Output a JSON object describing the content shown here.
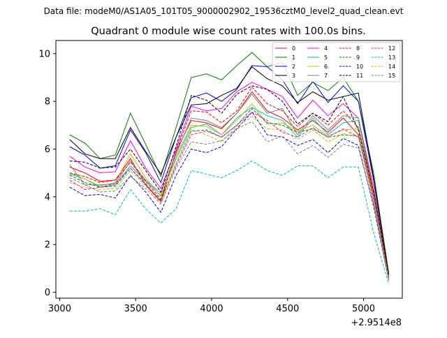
{
  "suptitle": "Data file: modeM0/AS1A05_101T05_9000002902_19536cztM0_level2_quad_clean.evt",
  "chart_data": {
    "type": "line",
    "title": "Quadrant 0 module wise count rates with 100.0s bins.",
    "xlabel": "",
    "ylabel": "",
    "x_offset_label": "+2.9514e8",
    "xlim": [
      2975,
      5255
    ],
    "ylim": [
      -0.25,
      10.55
    ],
    "xticks": [
      3000,
      3500,
      4000,
      4500,
      5000
    ],
    "yticks": [
      0,
      2,
      4,
      6,
      8,
      10
    ],
    "x": [
      3066,
      3166,
      3266,
      3366,
      3466,
      3566,
      3666,
      3766,
      3866,
      3966,
      4066,
      4166,
      4266,
      4366,
      4466,
      4566,
      4666,
      4766,
      4866,
      4966,
      5066,
      5166
    ],
    "legend_position": "upper-right",
    "series": [
      {
        "name": "0",
        "color": "#ff0000",
        "dash": "solid",
        "values": [
          5.25,
          5.0,
          4.65,
          4.7,
          5.6,
          4.5,
          3.8,
          5.9,
          7.2,
          7.1,
          6.85,
          7.5,
          8.4,
          7.6,
          7.3,
          6.8,
          7.2,
          6.7,
          7.3,
          6.6,
          4.0,
          0.7
        ]
      },
      {
        "name": "1",
        "color": "#008000",
        "dash": "solid",
        "values": [
          6.6,
          6.25,
          5.6,
          5.75,
          7.5,
          6.2,
          4.85,
          6.9,
          9.0,
          9.15,
          8.9,
          9.5,
          10.05,
          9.45,
          9.65,
          8.25,
          8.8,
          8.45,
          9.0,
          8.0,
          5.0,
          0.8
        ]
      },
      {
        "name": "2",
        "color": "#0000ff",
        "dash": "solid",
        "values": [
          6.1,
          5.75,
          5.2,
          5.3,
          6.8,
          5.85,
          4.6,
          6.5,
          8.15,
          8.35,
          8.0,
          8.5,
          9.5,
          9.45,
          8.9,
          7.9,
          8.85,
          7.95,
          8.65,
          8.0,
          4.7,
          0.7
        ]
      },
      {
        "name": "3",
        "color": "#000000",
        "dash": "solid",
        "values": [
          6.4,
          5.8,
          5.6,
          5.6,
          6.9,
          5.9,
          4.95,
          6.5,
          7.85,
          7.9,
          8.25,
          8.55,
          9.45,
          8.95,
          8.65,
          7.95,
          8.4,
          8.05,
          8.2,
          8.35,
          4.8,
          0.75
        ]
      },
      {
        "name": "4",
        "color": "#ff00ff",
        "dash": "solid",
        "values": [
          5.7,
          5.25,
          5.0,
          5.05,
          6.35,
          5.2,
          4.35,
          6.0,
          7.8,
          7.6,
          7.7,
          8.4,
          8.8,
          8.5,
          8.2,
          7.3,
          8.05,
          7.4,
          7.9,
          7.3,
          4.4,
          0.7
        ]
      },
      {
        "name": "5",
        "color": "#00bfbf",
        "dash": "solid",
        "values": [
          4.95,
          4.75,
          4.4,
          4.5,
          5.3,
          4.65,
          4.05,
          5.6,
          6.9,
          7.05,
          6.6,
          7.3,
          7.75,
          7.4,
          7.2,
          6.5,
          7.3,
          6.6,
          7.1,
          7.2,
          4.1,
          0.6
        ]
      },
      {
        "name": "6",
        "color": "#bfbf00",
        "dash": "solid",
        "values": [
          5.0,
          4.75,
          4.45,
          4.6,
          5.8,
          4.8,
          4.0,
          5.7,
          7.0,
          6.95,
          6.6,
          7.2,
          7.9,
          7.05,
          7.1,
          6.75,
          7.0,
          6.55,
          6.8,
          6.85,
          4.1,
          0.6
        ]
      },
      {
        "name": "7",
        "color": "#808080",
        "dash": "solid",
        "values": [
          5.35,
          4.5,
          4.5,
          4.55,
          5.5,
          4.7,
          4.15,
          5.8,
          7.3,
          7.2,
          6.9,
          7.5,
          8.3,
          7.5,
          7.7,
          6.6,
          7.4,
          6.8,
          7.4,
          7.3,
          4.2,
          0.65
        ]
      },
      {
        "name": "8",
        "color": "#ff0000",
        "dash": "dashed",
        "values": [
          5.0,
          4.85,
          4.6,
          4.7,
          5.45,
          4.65,
          3.9,
          5.9,
          7.6,
          7.55,
          7.1,
          7.6,
          8.6,
          7.9,
          7.6,
          6.95,
          7.5,
          7.0,
          7.6,
          6.9,
          4.2,
          0.7
        ]
      },
      {
        "name": "9",
        "color": "#008000",
        "dash": "dashed",
        "values": [
          4.9,
          4.6,
          4.4,
          4.45,
          5.2,
          4.5,
          3.85,
          5.4,
          6.75,
          6.8,
          6.5,
          7.0,
          7.7,
          7.1,
          7.0,
          6.7,
          6.85,
          6.5,
          6.6,
          6.55,
          3.9,
          0.55
        ]
      },
      {
        "name": "10",
        "color": "#0000ff",
        "dash": "dashed",
        "values": [
          4.4,
          4.05,
          4.1,
          3.95,
          4.9,
          4.2,
          3.35,
          4.9,
          6.0,
          5.85,
          6.1,
          6.85,
          7.55,
          6.6,
          6.5,
          6.15,
          6.4,
          5.85,
          6.45,
          6.15,
          3.6,
          0.5
        ]
      },
      {
        "name": "11",
        "color": "#000000",
        "dash": "dashed",
        "values": [
          5.5,
          5.45,
          5.2,
          5.25,
          6.0,
          5.1,
          4.2,
          6.1,
          8.25,
          8.05,
          7.5,
          8.3,
          8.65,
          8.5,
          8.0,
          7.05,
          7.5,
          7.15,
          8.2,
          6.8,
          4.2,
          0.75
        ]
      },
      {
        "name": "12",
        "color": "#ff00ff",
        "dash": "dashed",
        "values": [
          4.7,
          4.3,
          4.4,
          4.55,
          5.2,
          4.55,
          3.8,
          5.3,
          6.6,
          6.75,
          6.5,
          7.0,
          7.55,
          7.2,
          6.7,
          6.5,
          6.9,
          6.5,
          6.85,
          6.5,
          3.8,
          0.55
        ]
      },
      {
        "name": "13",
        "color": "#00bfbf",
        "dash": "dashed",
        "values": [
          3.4,
          3.4,
          3.5,
          3.25,
          4.3,
          3.5,
          2.9,
          3.5,
          5.1,
          4.95,
          4.8,
          5.1,
          5.5,
          5.1,
          4.9,
          5.3,
          5.3,
          4.8,
          5.25,
          5.25,
          2.5,
          0.35
        ]
      },
      {
        "name": "14",
        "color": "#bfbf00",
        "dash": "dashed",
        "values": [
          4.6,
          4.4,
          4.3,
          4.35,
          5.1,
          4.45,
          3.75,
          5.4,
          6.8,
          6.6,
          6.3,
          6.95,
          7.35,
          6.85,
          6.8,
          6.4,
          6.8,
          6.3,
          6.65,
          6.5,
          3.9,
          0.55
        ]
      },
      {
        "name": "15",
        "color": "#808080",
        "dash": "dashed",
        "values": [
          4.8,
          4.5,
          4.2,
          4.25,
          4.85,
          4.35,
          3.7,
          5.2,
          6.3,
          6.2,
          6.35,
          6.85,
          7.15,
          6.3,
          6.55,
          5.8,
          6.15,
          5.65,
          6.2,
          6.05,
          3.7,
          0.5
        ]
      }
    ]
  }
}
